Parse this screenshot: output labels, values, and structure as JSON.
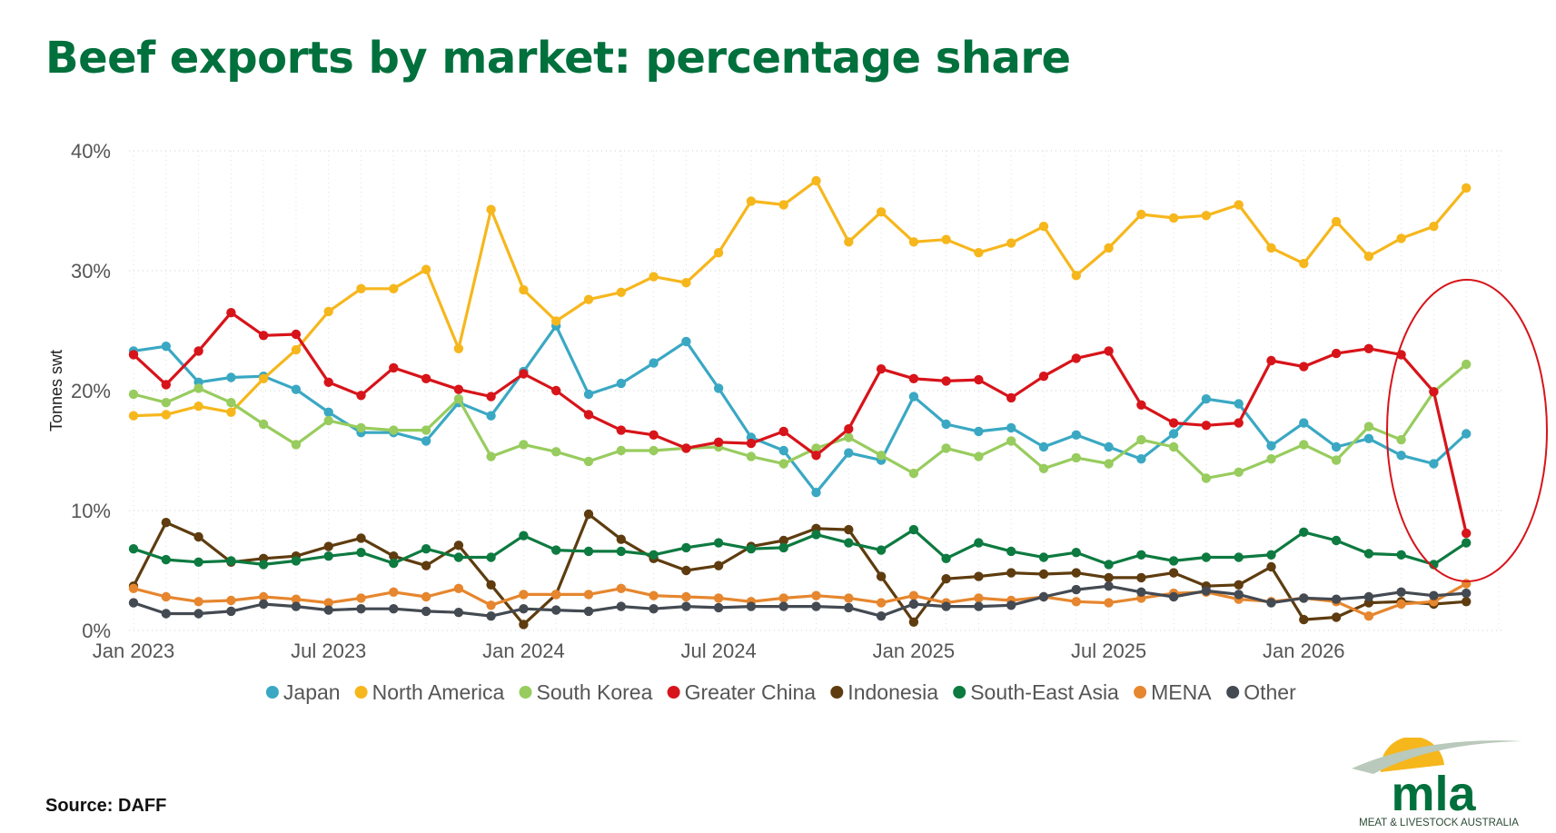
{
  "title": "Beef exports by market: percentage share",
  "source": "Source: DAFF",
  "logo": {
    "text": "mla",
    "subtitle": "MEAT & LIVESTOCK AUSTRALIA",
    "green": "#00703c",
    "yellow": "#f6b71d"
  },
  "annotation": {
    "shape": "ellipse",
    "color": "#d7141a"
  },
  "chart_data": {
    "type": "line",
    "title": "Beef exports by market: percentage share",
    "xlabel": "",
    "ylabel": "Tonnes swt",
    "ylim": [
      0,
      40
    ],
    "y_ticks": [
      0,
      10,
      20,
      30,
      40
    ],
    "y_tick_labels": [
      "0%",
      "10%",
      "20%",
      "30%",
      "40%"
    ],
    "x_tick_labels": [
      "Jan 2023",
      "Jul 2023",
      "Jan 2024",
      "Jul 2024",
      "Jan 2025",
      "Jul 2025",
      "Jan 2026"
    ],
    "x_tick_indices": [
      0,
      6,
      12,
      18,
      24,
      30,
      36
    ],
    "grid": true,
    "legend_position": "bottom",
    "x": [
      "2023-01",
      "2023-02",
      "2023-03",
      "2023-04",
      "2023-05",
      "2023-06",
      "2023-07",
      "2023-08",
      "2023-09",
      "2023-10",
      "2023-11",
      "2023-12",
      "2024-01",
      "2024-02",
      "2024-03",
      "2024-04",
      "2024-05",
      "2024-06",
      "2024-07",
      "2024-08",
      "2024-09",
      "2024-10",
      "2024-11",
      "2024-12",
      "2025-01",
      "2025-02",
      "2025-03",
      "2025-04",
      "2025-05",
      "2025-06",
      "2025-07",
      "2025-08",
      "2025-09",
      "2025-10",
      "2025-11",
      "2025-12",
      "2026-01",
      "2026-02",
      "2026-03",
      "2026-04",
      "2026-05",
      "2026-06",
      "2026-07"
    ],
    "series": [
      {
        "name": "Japan",
        "color": "#3aa8c3",
        "values": [
          23.3,
          23.7,
          20.7,
          21.1,
          21.2,
          20.1,
          18.2,
          16.5,
          16.5,
          15.8,
          19.0,
          17.9,
          21.6,
          25.4,
          19.7,
          20.6,
          22.3,
          24.1,
          20.2,
          16.1,
          15.0,
          11.5,
          14.8,
          14.2,
          19.5,
          17.2,
          16.6,
          16.9,
          15.3,
          16.3,
          15.3,
          14.3,
          16.4,
          19.3,
          18.9,
          15.4,
          17.3,
          15.3,
          16.0,
          14.6,
          13.9,
          16.4,
          null
        ]
      },
      {
        "name": "North America",
        "color": "#f6b71d",
        "values": [
          17.9,
          18.0,
          18.7,
          18.2,
          21.0,
          23.4,
          26.6,
          28.5,
          28.5,
          30.1,
          23.5,
          35.1,
          28.4,
          25.8,
          27.6,
          28.2,
          29.5,
          29.0,
          31.5,
          35.8,
          35.5,
          37.5,
          32.4,
          34.9,
          32.4,
          32.6,
          31.5,
          32.3,
          33.7,
          29.6,
          31.9,
          34.7,
          34.4,
          34.6,
          35.5,
          31.9,
          30.6,
          34.1,
          31.2,
          32.7,
          33.7,
          36.9,
          null
        ]
      },
      {
        "name": "South Korea",
        "color": "#98cc5e",
        "values": [
          19.7,
          19.0,
          20.2,
          19.0,
          17.2,
          15.5,
          17.5,
          16.9,
          16.7,
          16.7,
          19.3,
          14.5,
          15.5,
          14.9,
          14.1,
          15.0,
          15.0,
          15.2,
          15.3,
          14.5,
          13.9,
          15.2,
          16.1,
          14.6,
          13.1,
          15.2,
          14.5,
          15.8,
          13.5,
          14.4,
          13.9,
          15.9,
          15.3,
          12.7,
          13.2,
          14.3,
          15.5,
          14.2,
          17.0,
          15.9,
          19.9,
          22.2,
          null
        ]
      },
      {
        "name": "Greater China",
        "color": "#d7141a",
        "values": [
          23.0,
          20.5,
          23.3,
          26.5,
          24.6,
          24.7,
          20.7,
          19.6,
          21.9,
          21.0,
          20.1,
          19.5,
          21.4,
          20.0,
          18.0,
          16.7,
          16.3,
          15.2,
          15.7,
          15.6,
          16.6,
          14.6,
          16.8,
          21.8,
          21.0,
          20.8,
          20.9,
          19.4,
          21.2,
          22.7,
          23.3,
          18.8,
          17.3,
          17.1,
          17.3,
          22.5,
          22.0,
          23.1,
          23.5,
          23.0,
          19.9,
          8.1,
          null
        ]
      },
      {
        "name": "Indonesia",
        "color": "#5e3c0f",
        "values": [
          3.7,
          9.0,
          7.8,
          5.7,
          6.0,
          6.2,
          7.0,
          7.7,
          6.2,
          5.4,
          7.1,
          3.8,
          0.5,
          3.0,
          9.7,
          7.6,
          6.0,
          5.0,
          5.4,
          7.0,
          7.5,
          8.5,
          8.4,
          4.5,
          0.7,
          4.3,
          4.5,
          4.8,
          4.7,
          4.8,
          4.4,
          4.4,
          4.8,
          3.7,
          3.8,
          5.3,
          0.9,
          1.1,
          2.3,
          2.4,
          2.2,
          2.4,
          null
        ]
      },
      {
        "name": "South-East Asia",
        "color": "#0d7a40",
        "values": [
          6.8,
          5.9,
          5.7,
          5.8,
          5.5,
          5.8,
          6.2,
          6.5,
          5.6,
          6.8,
          6.1,
          6.1,
          7.9,
          6.7,
          6.6,
          6.6,
          6.3,
          6.9,
          7.3,
          6.8,
          6.9,
          8.0,
          7.3,
          6.7,
          8.4,
          6.0,
          7.3,
          6.6,
          6.1,
          6.5,
          5.5,
          6.3,
          5.8,
          6.1,
          6.1,
          6.3,
          8.2,
          7.5,
          6.4,
          6.3,
          5.5,
          7.3,
          null
        ]
      },
      {
        "name": "MENA",
        "color": "#e6862e",
        "values": [
          3.5,
          2.8,
          2.4,
          2.5,
          2.8,
          2.6,
          2.3,
          2.7,
          3.2,
          2.8,
          3.5,
          2.1,
          3.0,
          3.0,
          3.0,
          3.5,
          2.9,
          2.8,
          2.7,
          2.4,
          2.7,
          2.9,
          2.7,
          2.3,
          2.9,
          2.3,
          2.7,
          2.5,
          2.8,
          2.4,
          2.3,
          2.7,
          3.1,
          3.2,
          2.6,
          2.4,
          2.7,
          2.4,
          1.2,
          2.2,
          2.4,
          3.9,
          null
        ]
      },
      {
        "name": "Other",
        "color": "#444a52",
        "values": [
          2.3,
          1.4,
          1.4,
          1.6,
          2.2,
          2.0,
          1.7,
          1.8,
          1.8,
          1.6,
          1.5,
          1.2,
          1.8,
          1.7,
          1.6,
          2.0,
          1.8,
          2.0,
          1.9,
          2.0,
          2.0,
          2.0,
          1.9,
          1.2,
          2.2,
          2.0,
          2.0,
          2.1,
          2.8,
          3.4,
          3.7,
          3.2,
          2.8,
          3.3,
          3.0,
          2.3,
          2.7,
          2.6,
          2.8,
          3.2,
          2.9,
          3.1,
          null
        ]
      }
    ]
  }
}
